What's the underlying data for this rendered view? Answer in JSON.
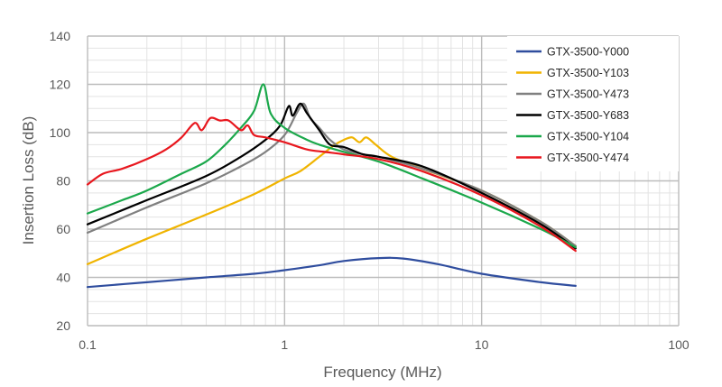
{
  "chart_data": {
    "type": "line",
    "title": "",
    "xlabel": "Frequency (MHz)",
    "ylabel": "Insertion Loss (dB)",
    "x_scale": "log",
    "xlim": [
      0.1,
      100
    ],
    "ylim": [
      20,
      140
    ],
    "x_ticks": [
      0.1,
      1,
      10,
      100
    ],
    "x_tick_labels": [
      "0.1",
      "1",
      "10",
      "100"
    ],
    "y_ticks": [
      20,
      40,
      60,
      80,
      100,
      120,
      140
    ],
    "y_tick_labels": [
      "20",
      "40",
      "60",
      "80",
      "100",
      "120",
      "140"
    ],
    "grid": true,
    "legend_position": "top-right",
    "series": [
      {
        "name": "GTX-3500-Y000",
        "color": "#2f4d9e",
        "points": [
          [
            0.1,
            36
          ],
          [
            0.2,
            38
          ],
          [
            0.4,
            40
          ],
          [
            0.7,
            41.5
          ],
          [
            1,
            43
          ],
          [
            1.5,
            45
          ],
          [
            2,
            46.8
          ],
          [
            3,
            48
          ],
          [
            4,
            47.8
          ],
          [
            6,
            45.5
          ],
          [
            10,
            41.5
          ],
          [
            20,
            38
          ],
          [
            30,
            36.5
          ]
        ]
      },
      {
        "name": "GTX-3500-Y103",
        "color": "#f0b400",
        "points": [
          [
            0.1,
            45.5
          ],
          [
            0.2,
            56
          ],
          [
            0.4,
            66
          ],
          [
            0.7,
            74.5
          ],
          [
            1,
            81
          ],
          [
            1.2,
            84
          ],
          [
            1.5,
            90
          ],
          [
            1.8,
            95
          ],
          [
            2,
            97
          ],
          [
            2.2,
            98
          ],
          [
            2.4,
            96
          ],
          [
            2.6,
            98
          ],
          [
            2.9,
            95
          ],
          [
            3.5,
            90
          ],
          [
            5,
            85
          ],
          [
            10,
            76
          ],
          [
            20,
            63
          ],
          [
            30,
            53
          ]
        ]
      },
      {
        "name": "GTX-3500-Y473",
        "color": "#808080",
        "points": [
          [
            0.1,
            58.5
          ],
          [
            0.2,
            69
          ],
          [
            0.4,
            79
          ],
          [
            0.6,
            86
          ],
          [
            0.8,
            92
          ],
          [
            1,
            99
          ],
          [
            1.15,
            108
          ],
          [
            1.25,
            112
          ],
          [
            1.35,
            106
          ],
          [
            1.5,
            102
          ],
          [
            1.7,
            97
          ],
          [
            2,
            93
          ],
          [
            2.5,
            91
          ],
          [
            3,
            90
          ],
          [
            5,
            85
          ],
          [
            10,
            76
          ],
          [
            20,
            63
          ],
          [
            30,
            53
          ]
        ]
      },
      {
        "name": "GTX-3500-Y683",
        "color": "#000000",
        "points": [
          [
            0.1,
            62
          ],
          [
            0.2,
            72
          ],
          [
            0.4,
            82
          ],
          [
            0.6,
            90
          ],
          [
            0.8,
            97
          ],
          [
            0.95,
            103
          ],
          [
            1.05,
            111
          ],
          [
            1.1,
            107
          ],
          [
            1.2,
            112
          ],
          [
            1.3,
            108
          ],
          [
            1.5,
            101
          ],
          [
            1.7,
            95
          ],
          [
            2,
            94
          ],
          [
            2.5,
            91
          ],
          [
            3,
            90
          ],
          [
            5,
            86
          ],
          [
            10,
            75
          ],
          [
            20,
            62
          ],
          [
            30,
            52
          ]
        ]
      },
      {
        "name": "GTX-3500-Y104",
        "color": "#1ba84b",
        "points": [
          [
            0.1,
            66.5
          ],
          [
            0.15,
            72
          ],
          [
            0.2,
            76
          ],
          [
            0.3,
            83
          ],
          [
            0.4,
            88
          ],
          [
            0.5,
            95
          ],
          [
            0.6,
            102
          ],
          [
            0.7,
            109
          ],
          [
            0.78,
            120
          ],
          [
            0.85,
            108
          ],
          [
            1,
            102
          ],
          [
            1.3,
            97
          ],
          [
            1.5,
            95
          ],
          [
            2,
            92
          ],
          [
            3,
            88
          ],
          [
            5,
            81
          ],
          [
            10,
            71
          ],
          [
            20,
            60
          ],
          [
            30,
            52.5
          ]
        ]
      },
      {
        "name": "GTX-3500-Y474",
        "color": "#e8171e",
        "points": [
          [
            0.1,
            78.5
          ],
          [
            0.12,
            83
          ],
          [
            0.15,
            85
          ],
          [
            0.2,
            89
          ],
          [
            0.25,
            93
          ],
          [
            0.3,
            98
          ],
          [
            0.35,
            104
          ],
          [
            0.38,
            101
          ],
          [
            0.42,
            106
          ],
          [
            0.47,
            105
          ],
          [
            0.52,
            105
          ],
          [
            0.6,
            101
          ],
          [
            0.65,
            103
          ],
          [
            0.7,
            99
          ],
          [
            0.8,
            98
          ],
          [
            1,
            96
          ],
          [
            1.3,
            93
          ],
          [
            1.6,
            92
          ],
          [
            2,
            91
          ],
          [
            3,
            89
          ],
          [
            5,
            84
          ],
          [
            10,
            74
          ],
          [
            20,
            61
          ],
          [
            30,
            51
          ]
        ]
      }
    ]
  }
}
